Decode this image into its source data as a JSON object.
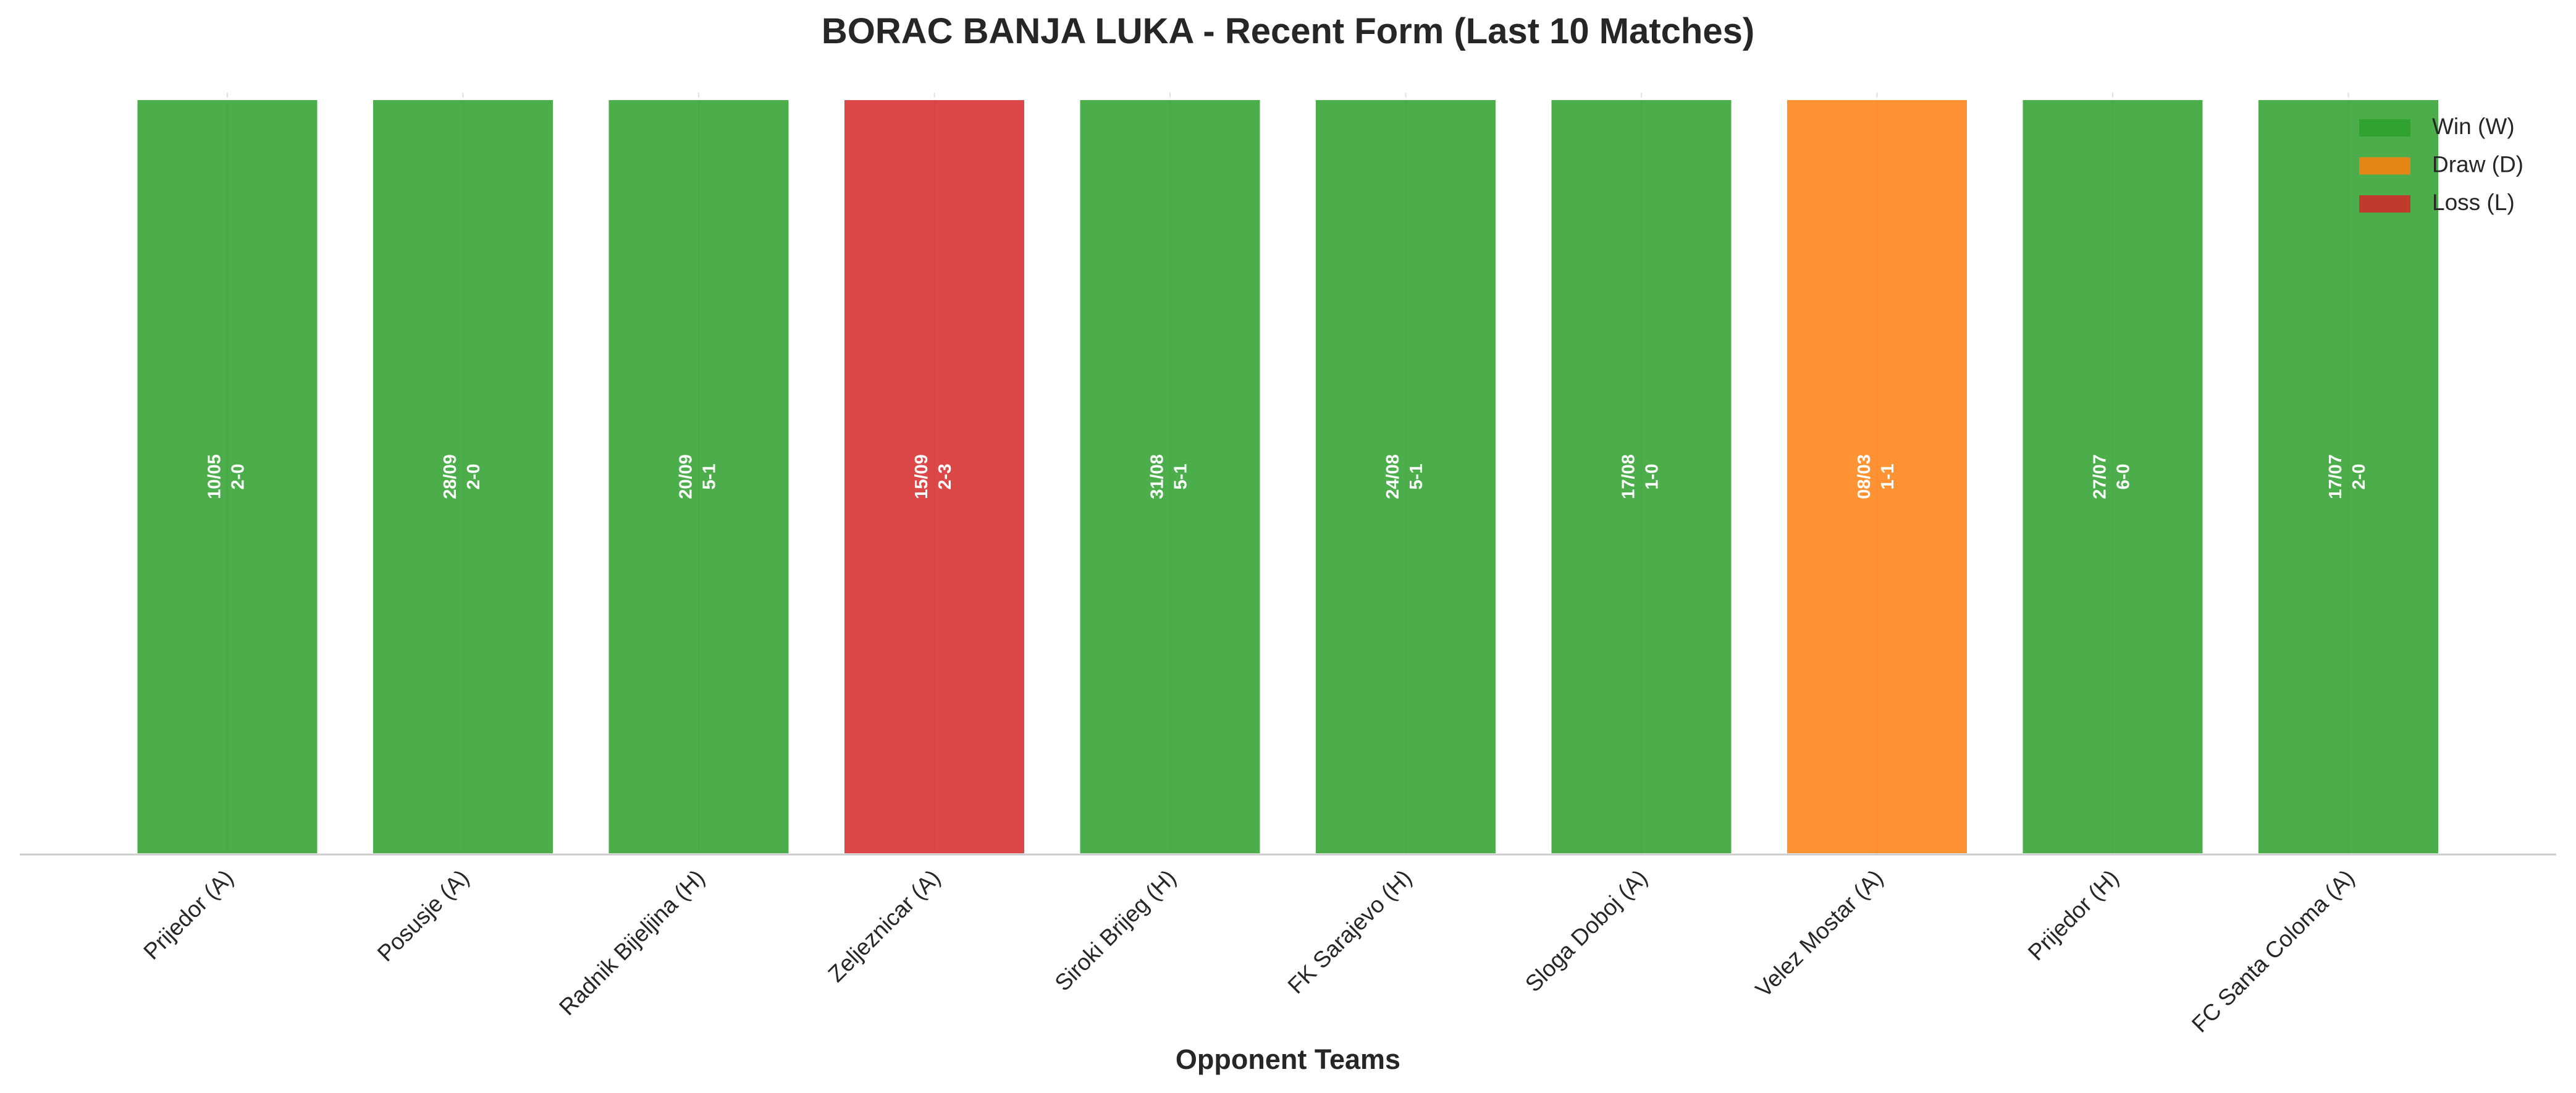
{
  "chart_data": {
    "type": "bar",
    "title": "BORAC BANJA LUKA - Recent Form (Last 10 Matches)",
    "x_label": "Opponent Teams",
    "categories": [
      "Prijedor (A)",
      "Posusje (A)",
      "Radnik Bijeljina (H)",
      "Zeljeznicar (A)",
      "Siroki Brijeg (H)",
      "FK Sarajevo (H)",
      "Sloga Doboj (A)",
      "Velez Mostar (A)",
      "Prijedor (H)",
      "FC Santa Coloma (A)"
    ],
    "values": [
      1,
      1,
      1,
      1,
      1,
      1,
      1,
      1,
      1,
      1
    ],
    "dates": [
      "10/05",
      "28/09",
      "20/09",
      "15/09",
      "31/08",
      "24/08",
      "17/08",
      "08/03",
      "27/07",
      "17/07"
    ],
    "scores": [
      "2-0",
      "2-0",
      "5-1",
      "2-3",
      "5-1",
      "5-1",
      "1-0",
      "1-1",
      "6-0",
      "2-0"
    ],
    "colors": [
      "#2ca02c",
      "#2ca02c",
      "#2ca02c",
      "#d62728",
      "#2ca02c",
      "#2ca02c",
      "#2ca02c",
      "#ff7f0e",
      "#2ca02c",
      "#2ca02c"
    ],
    "ylim": [
      0,
      1
    ],
    "legend": [
      {
        "name": "Win (W)",
        "color": "#2ca02c"
      },
      {
        "name": "Draw (D)",
        "color": "#ff7f0e"
      },
      {
        "name": "Loss (L)",
        "color": "#d62728"
      }
    ],
    "legend_position": "upper right"
  }
}
